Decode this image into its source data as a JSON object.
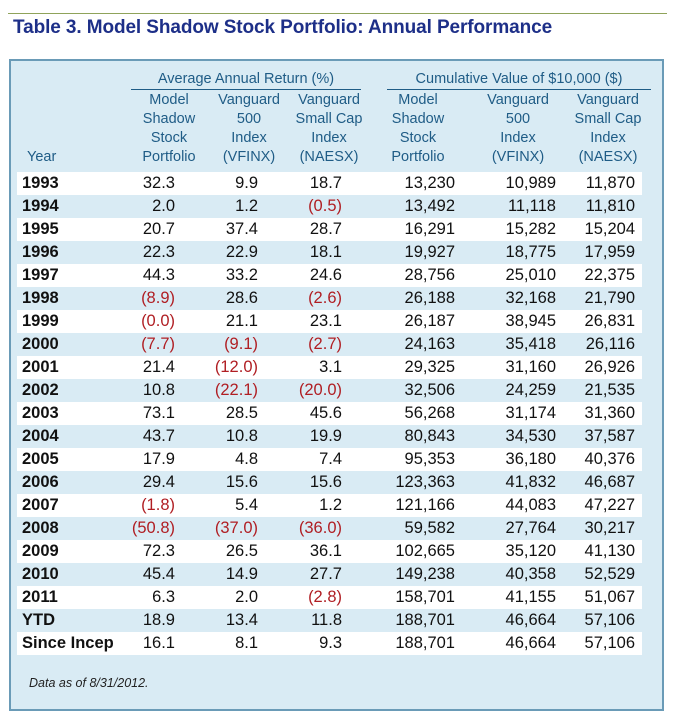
{
  "title": "Table 3. Model Shadow Stock Portfolio: Annual Performance",
  "groups": {
    "annual": "Average Annual Return (%)",
    "cumulative": "Cumulative Value of $10,000 ($)"
  },
  "columns": {
    "year": "Year",
    "c1": [
      "Model",
      "Shadow",
      "Stock",
      "Portfolio"
    ],
    "c2": [
      "Vanguard",
      "500",
      "Index",
      "(VFINX)"
    ],
    "c3": [
      "Vanguard",
      "Small Cap",
      "Index",
      "(NAESX)"
    ],
    "c4": [
      "Model",
      "Shadow",
      "Stock",
      "Portfolio"
    ],
    "c5": [
      "Vanguard",
      "500",
      "Index",
      "(VFINX)"
    ],
    "c6": [
      "Vanguard",
      "Small Cap",
      "Index",
      "(NAESX)"
    ]
  },
  "rows": [
    [
      "1993",
      "32.3",
      "9.9",
      "18.7",
      "13,230",
      "10,989",
      "11,870"
    ],
    [
      "1994",
      "2.0",
      "1.2",
      "(0.5)",
      "13,492",
      "11,118",
      "11,810"
    ],
    [
      "1995",
      "20.7",
      "37.4",
      "28.7",
      "16,291",
      "15,282",
      "15,204"
    ],
    [
      "1996",
      "22.3",
      "22.9",
      "18.1",
      "19,927",
      "18,775",
      "17,959"
    ],
    [
      "1997",
      "44.3",
      "33.2",
      "24.6",
      "28,756",
      "25,010",
      "22,375"
    ],
    [
      "1998",
      "(8.9)",
      "28.6",
      "(2.6)",
      "26,188",
      "32,168",
      "21,790"
    ],
    [
      "1999",
      "(0.0)",
      "21.1",
      "23.1",
      "26,187",
      "38,945",
      "26,831"
    ],
    [
      "2000",
      "(7.7)",
      "(9.1)",
      "(2.7)",
      "24,163",
      "35,418",
      "26,116"
    ],
    [
      "2001",
      "21.4",
      "(12.0)",
      "3.1",
      "29,325",
      "31,160",
      "26,926"
    ],
    [
      "2002",
      "10.8",
      "(22.1)",
      "(20.0)",
      "32,506",
      "24,259",
      "21,535"
    ],
    [
      "2003",
      "73.1",
      "28.5",
      "45.6",
      "56,268",
      "31,174",
      "31,360"
    ],
    [
      "2004",
      "43.7",
      "10.8",
      "19.9",
      "80,843",
      "34,530",
      "37,587"
    ],
    [
      "2005",
      "17.9",
      "4.8",
      "7.4",
      "95,353",
      "36,180",
      "40,376"
    ],
    [
      "2006",
      "29.4",
      "15.6",
      "15.6",
      "123,363",
      "41,832",
      "46,687"
    ],
    [
      "2007",
      "(1.8)",
      "5.4",
      "1.2",
      "121,166",
      "44,083",
      "47,227"
    ],
    [
      "2008",
      "(50.8)",
      "(37.0)",
      "(36.0)",
      "59,582",
      "27,764",
      "30,217"
    ],
    [
      "2009",
      "72.3",
      "26.5",
      "36.1",
      "102,665",
      "35,120",
      "41,130"
    ],
    [
      "2010",
      "45.4",
      "14.9",
      "27.7",
      "149,238",
      "40,358",
      "52,529"
    ],
    [
      "2011",
      "6.3",
      "2.0",
      "(2.8)",
      "158,701",
      "41,155",
      "51,067"
    ],
    [
      "YTD",
      "18.9",
      "13.4",
      "11.8",
      "188,701",
      "46,664",
      "57,106"
    ],
    [
      "Since Incep",
      "16.1",
      "8.1",
      "9.3",
      "188,701",
      "46,664",
      "57,106"
    ]
  ],
  "note": "Data as of 8/31/2012.",
  "colors": {
    "title": "#1d2f88",
    "header": "#1f5c86",
    "panel_background": "#d9ebf4",
    "panel_border": "#6a9bb7",
    "negative": "#b01e23"
  }
}
